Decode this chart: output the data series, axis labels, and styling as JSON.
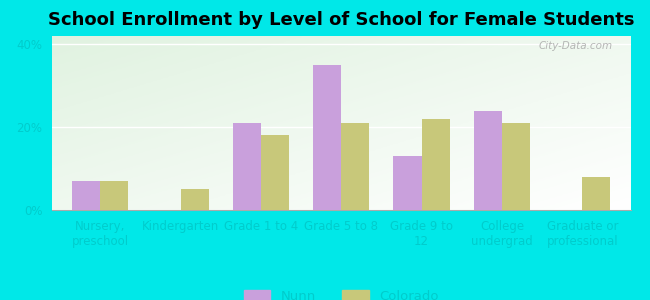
{
  "title": "School Enrollment by Level of School for Female Students",
  "categories": [
    "Nursery,\npreschool",
    "Kindergarten",
    "Grade 1 to 4",
    "Grade 5 to 8",
    "Grade 9 to\n12",
    "College\nundergrad",
    "Graduate or\nprofessional"
  ],
  "nunn_values": [
    7,
    0,
    21,
    35,
    13,
    24,
    0
  ],
  "colorado_values": [
    7,
    5,
    18,
    21,
    22,
    21,
    8
  ],
  "nunn_color": "#c9a0dc",
  "colorado_color": "#c8c87a",
  "background_outer": "#00e8e8",
  "ylim": [
    0,
    42
  ],
  "yticks": [
    0,
    20,
    40
  ],
  "ytick_labels": [
    "0%",
    "20%",
    "40%"
  ],
  "bar_width": 0.35,
  "legend_labels": [
    "Nunn",
    "Colorado"
  ],
  "title_fontsize": 13,
  "tick_fontsize": 8.5,
  "tick_color": "#00cccc",
  "watermark_text": "City-Data.com"
}
